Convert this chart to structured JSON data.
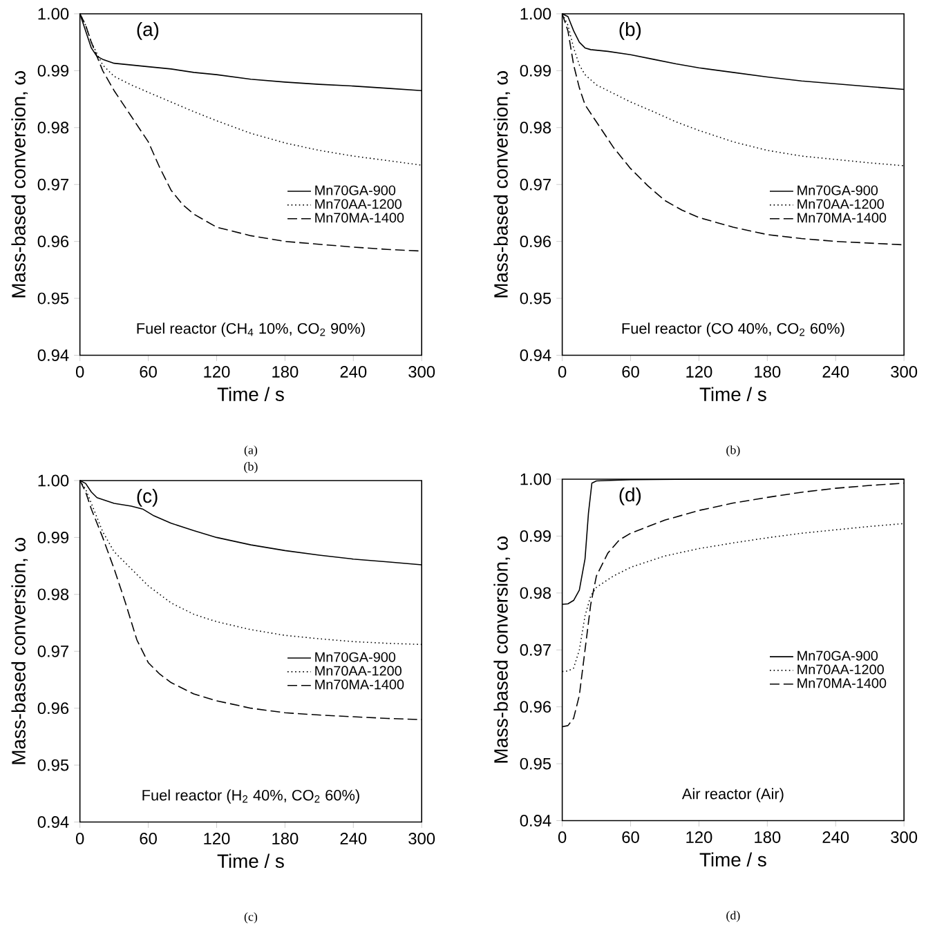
{
  "chart_data": [
    {
      "type": "line",
      "xlabel": "Time / s",
      "ylabel": "Mass-based conversion, ω",
      "xlim": [
        0,
        300
      ],
      "ylim": [
        0.94,
        1.0
      ],
      "xticks": [
        0,
        60,
        120,
        180,
        240,
        300
      ],
      "yticks": [
        {
          "value": 0.94,
          "label": "0.94"
        },
        {
          "value": 0.95,
          "label": "0.95"
        },
        {
          "value": 0.96,
          "label": "0.96"
        },
        {
          "value": 0.97,
          "label": "0.97"
        },
        {
          "value": 0.98,
          "label": "0.98"
        },
        {
          "value": 0.99,
          "label": "0.99"
        },
        {
          "value": 1.0,
          "label": "1.00"
        }
      ],
      "legend": "right",
      "annotations": [
        "(a)",
        "Fuel reactor (CH$_{4}$ 10%, CO$_{2}$ 90%)",
        "(a)",
        "(b)"
      ],
      "series": [
        {
          "name": "Mn70GA-900",
          "color": "#000000",
          "line_style": "solid",
          "x": [
            0,
            5,
            10,
            15,
            20,
            30,
            45,
            60,
            80,
            100,
            120,
            150,
            180,
            210,
            240,
            270,
            300
          ],
          "values": [
            1.0,
            0.997,
            0.994,
            0.9925,
            0.992,
            0.9913,
            0.991,
            0.9907,
            0.9903,
            0.9897,
            0.9893,
            0.9885,
            0.988,
            0.9876,
            0.9873,
            0.9869,
            0.9865
          ]
        },
        {
          "name": "Mn70AA-1200",
          "color": "#000000",
          "line_style": "dotted",
          "x": [
            0,
            5,
            10,
            20,
            30,
            45,
            60,
            80,
            100,
            120,
            150,
            180,
            210,
            240,
            270,
            300
          ],
          "values": [
            1.0,
            0.998,
            0.995,
            0.991,
            0.989,
            0.9875,
            0.9862,
            0.9845,
            0.9828,
            0.9812,
            0.979,
            0.9773,
            0.976,
            0.975,
            0.9742,
            0.9734
          ]
        },
        {
          "name": "Mn70MA-1400",
          "color": "#000000",
          "line_style": "dashed",
          "x": [
            0,
            5,
            10,
            20,
            30,
            45,
            60,
            70,
            80,
            90,
            100,
            120,
            150,
            180,
            210,
            240,
            270,
            300
          ],
          "values": [
            1.0,
            0.998,
            0.995,
            0.99,
            0.9865,
            0.982,
            0.9775,
            0.973,
            0.969,
            0.9665,
            0.9648,
            0.9625,
            0.961,
            0.96,
            0.9595,
            0.959,
            0.9586,
            0.9583
          ]
        }
      ]
    },
    {
      "type": "line",
      "xlabel": "Time / s",
      "ylabel": "Mass-based conversion, ω",
      "xlim": [
        0,
        300
      ],
      "ylim": [
        0.94,
        1.0
      ],
      "xticks": [
        0,
        60,
        120,
        180,
        240,
        300
      ],
      "yticks": [
        {
          "value": 0.94,
          "label": "0.94"
        },
        {
          "value": 0.95,
          "label": "0.95"
        },
        {
          "value": 0.96,
          "label": "0.96"
        },
        {
          "value": 0.97,
          "label": "0.97"
        },
        {
          "value": 0.98,
          "label": "0.98"
        },
        {
          "value": 0.99,
          "label": "0.99"
        },
        {
          "value": 1.0,
          "label": "1.00"
        }
      ],
      "legend": "right",
      "annotations": [
        "(b)",
        "Fuel reactor (CO 40%, CO$_{2}$ 60%)",
        "(b)"
      ],
      "series": [
        {
          "name": "Mn70GA-900",
          "color": "#000000",
          "line_style": "solid",
          "x": [
            0,
            5,
            10,
            15,
            20,
            25,
            40,
            60,
            80,
            100,
            120,
            150,
            180,
            210,
            240,
            270,
            300
          ],
          "values": [
            1.0,
            0.9995,
            0.997,
            0.995,
            0.994,
            0.9937,
            0.9934,
            0.9928,
            0.992,
            0.9912,
            0.9905,
            0.9897,
            0.9889,
            0.9882,
            0.9877,
            0.9872,
            0.9867
          ]
        },
        {
          "name": "Mn70AA-1200",
          "color": "#000000",
          "line_style": "dotted",
          "x": [
            0,
            5,
            10,
            15,
            20,
            30,
            45,
            60,
            80,
            100,
            120,
            150,
            180,
            210,
            240,
            270,
            300
          ],
          "values": [
            1.0,
            0.998,
            0.994,
            0.991,
            0.9893,
            0.9875,
            0.986,
            0.9845,
            0.9828,
            0.981,
            0.9795,
            0.9775,
            0.976,
            0.975,
            0.9744,
            0.9738,
            0.9733
          ]
        },
        {
          "name": "Mn70MA-1400",
          "color": "#000000",
          "line_style": "dashed",
          "x": [
            0,
            5,
            10,
            15,
            20,
            30,
            45,
            60,
            75,
            90,
            105,
            120,
            150,
            180,
            210,
            240,
            270,
            300
          ],
          "values": [
            1.0,
            0.997,
            0.991,
            0.987,
            0.984,
            0.981,
            0.9765,
            0.9728,
            0.9698,
            0.9672,
            0.9655,
            0.9642,
            0.9625,
            0.9612,
            0.9605,
            0.96,
            0.9597,
            0.9594
          ]
        }
      ]
    },
    {
      "type": "line",
      "xlabel": "Time / s",
      "ylabel": "Mass-based conversion, ω",
      "xlim": [
        0,
        300
      ],
      "ylim": [
        0.94,
        1.0
      ],
      "xticks": [
        0,
        60,
        120,
        180,
        240,
        300
      ],
      "yticks": [
        {
          "value": 0.94,
          "label": "0.94"
        },
        {
          "value": 0.95,
          "label": "0.95"
        },
        {
          "value": 0.96,
          "label": "0.96"
        },
        {
          "value": 0.97,
          "label": "0.97"
        },
        {
          "value": 0.98,
          "label": "0.98"
        },
        {
          "value": 0.99,
          "label": "0.99"
        },
        {
          "value": 1.0,
          "label": "1.00"
        }
      ],
      "legend": "right",
      "annotations": [
        "(c)",
        "Fuel reactor (H$_{2}$ 40%, CO$_{2}$ 60%)",
        "(c)"
      ],
      "series": [
        {
          "name": "Mn70GA-900",
          "color": "#000000",
          "line_style": "solid",
          "x": [
            0,
            5,
            10,
            15,
            30,
            45,
            55,
            65,
            80,
            100,
            120,
            150,
            180,
            210,
            240,
            270,
            300
          ],
          "values": [
            1.0,
            0.9995,
            0.998,
            0.997,
            0.996,
            0.9955,
            0.995,
            0.9938,
            0.9925,
            0.9912,
            0.99,
            0.9887,
            0.9877,
            0.9869,
            0.9862,
            0.9857,
            0.9852
          ]
        },
        {
          "name": "Mn70AA-1200",
          "color": "#000000",
          "line_style": "dotted",
          "x": [
            0,
            5,
            10,
            20,
            30,
            45,
            60,
            80,
            100,
            120,
            150,
            180,
            210,
            240,
            270,
            300
          ],
          "values": [
            1.0,
            0.9985,
            0.996,
            0.991,
            0.9875,
            0.9845,
            0.9815,
            0.9785,
            0.9765,
            0.9752,
            0.9738,
            0.9728,
            0.9722,
            0.9717,
            0.9714,
            0.9712
          ]
        },
        {
          "name": "Mn70MA-1400",
          "color": "#000000",
          "line_style": "dashed",
          "x": [
            0,
            5,
            10,
            20,
            30,
            40,
            50,
            60,
            70,
            80,
            100,
            120,
            150,
            180,
            210,
            240,
            270,
            300
          ],
          "values": [
            1.0,
            0.998,
            0.995,
            0.99,
            0.9845,
            0.9785,
            0.972,
            0.968,
            0.966,
            0.9645,
            0.9625,
            0.9613,
            0.96,
            0.9592,
            0.9588,
            0.9585,
            0.9582,
            0.958
          ]
        }
      ]
    },
    {
      "type": "line",
      "xlabel": "Time / s",
      "ylabel": "Mass-based conversion, ω",
      "xlim": [
        0,
        300
      ],
      "ylim": [
        0.94,
        1.0
      ],
      "xticks": [
        0,
        60,
        120,
        180,
        240,
        300
      ],
      "yticks": [
        {
          "value": 0.94,
          "label": "0.94"
        },
        {
          "value": 0.95,
          "label": "0.95"
        },
        {
          "value": 0.96,
          "label": "0.96"
        },
        {
          "value": 0.97,
          "label": "0.97"
        },
        {
          "value": 0.98,
          "label": "0.98"
        },
        {
          "value": 0.99,
          "label": "0.99"
        },
        {
          "value": 1.0,
          "label": "1.00"
        }
      ],
      "legend": "right",
      "annotations": [
        "(d)",
        "Air reactor (Air)",
        "(d)"
      ],
      "series": [
        {
          "name": "Mn70GA-900",
          "color": "#000000",
          "line_style": "solid",
          "x": [
            0,
            5,
            10,
            15,
            20,
            23,
            26,
            30,
            60,
            120,
            300
          ],
          "values": [
            0.978,
            0.9781,
            0.9787,
            0.9805,
            0.986,
            0.994,
            0.9993,
            0.9997,
            0.9999,
            1.0,
            1.0
          ]
        },
        {
          "name": "Mn70AA-1200",
          "color": "#000000",
          "line_style": "dotted",
          "x": [
            0,
            5,
            10,
            15,
            20,
            25,
            30,
            45,
            60,
            90,
            120,
            150,
            180,
            210,
            240,
            270,
            300
          ],
          "values": [
            0.9662,
            0.9663,
            0.9668,
            0.97,
            0.976,
            0.9795,
            0.981,
            0.983,
            0.9845,
            0.9865,
            0.9878,
            0.9888,
            0.9897,
            0.9905,
            0.9911,
            0.9917,
            0.9922
          ]
        },
        {
          "name": "Mn70MA-1400",
          "color": "#000000",
          "line_style": "dashed",
          "x": [
            0,
            5,
            10,
            15,
            20,
            25,
            30,
            40,
            50,
            60,
            90,
            120,
            150,
            180,
            210,
            240,
            270,
            300
          ],
          "values": [
            0.9565,
            0.9567,
            0.958,
            0.962,
            0.97,
            0.978,
            0.983,
            0.987,
            0.9893,
            0.9905,
            0.9928,
            0.9945,
            0.9958,
            0.9968,
            0.9977,
            0.9984,
            0.9989,
            0.9993
          ]
        }
      ]
    }
  ]
}
